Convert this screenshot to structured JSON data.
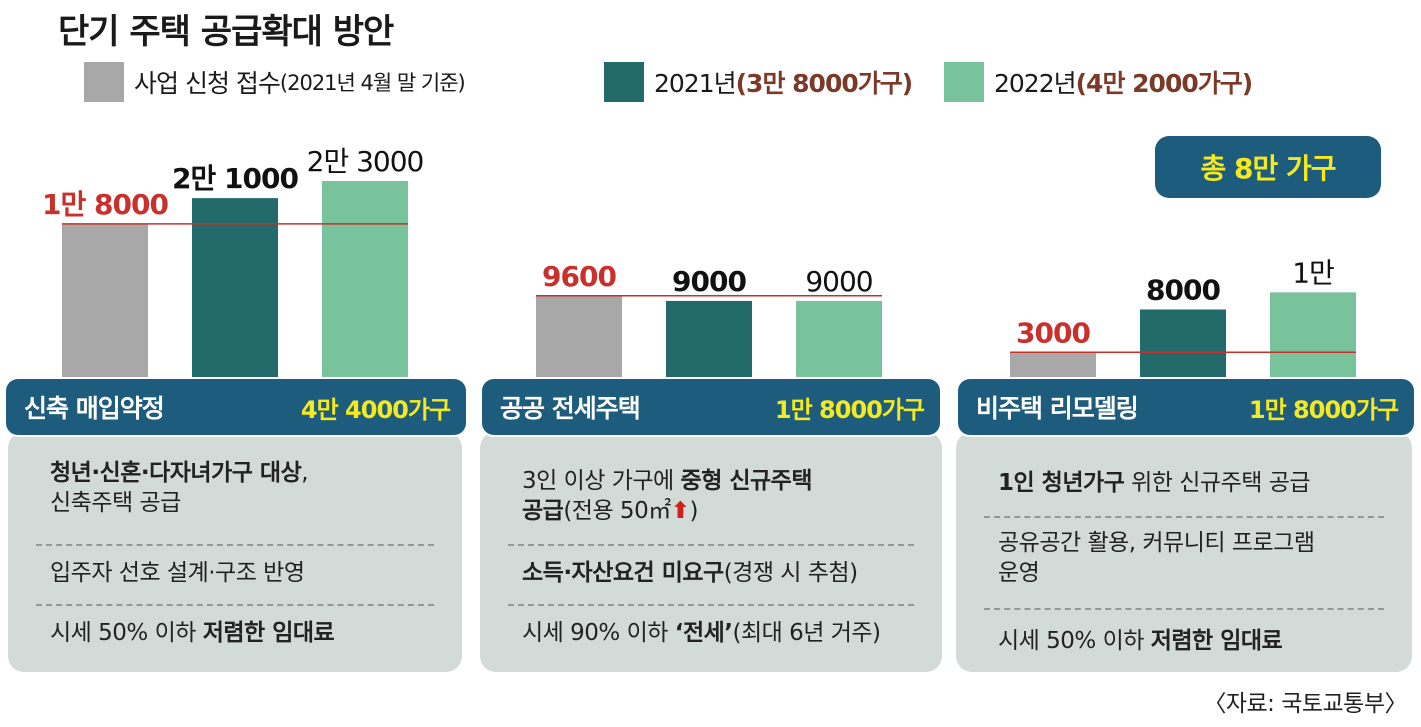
{
  "title": "단기 주택 공급확대 방안",
  "legend": {
    "applications": {
      "label": "사업 신청 접수",
      "note": "(2021년 4월 말 기준)",
      "color": "#a8a8a8"
    },
    "y2021": {
      "label": "2021년",
      "total": "(3만 8000가구)",
      "color": "#236a6a"
    },
    "y2022": {
      "label": "2022년",
      "total": "(4만 2000가구)",
      "color": "#78c29c"
    }
  },
  "grand_total": "총 8만 가구",
  "chart_data": {
    "type": "bar",
    "series": [
      {
        "name": "사업 신청 접수(2021년 4월 말 기준)",
        "color": "#a8a8a8"
      },
      {
        "name": "2021년",
        "color": "#236a6a"
      },
      {
        "name": "2022년",
        "color": "#78c29c"
      }
    ],
    "groups": [
      {
        "category": "신축 매입약정",
        "values": [
          18000,
          21000,
          23000
        ],
        "labels": [
          "1만 8000",
          "2만 1000",
          "2만 3000"
        ]
      },
      {
        "category": "공공 전세주택",
        "values": [
          9600,
          9000,
          9000
        ],
        "labels": [
          "9600",
          "9000",
          "9000"
        ]
      },
      {
        "category": "비주택 리모델링",
        "values": [
          3000,
          8000,
          10000
        ],
        "labels": [
          "3000",
          "8000",
          "1만"
        ]
      }
    ]
  },
  "panels": [
    {
      "name": "신축 매입약정",
      "total": "4만 4000가구",
      "items": [
        {
          "bold1": "청년·신혼·다자녀가구 대상",
          "text1": ",",
          "line2": "신축주택 공급"
        },
        {
          "text1": "입주자 선호 설계·구조 반영"
        },
        {
          "text1": "시세 50% 이하 ",
          "bold2": "저렴한 임대료"
        }
      ]
    },
    {
      "name": "공공 전세주택",
      "total": "1만 8000가구",
      "items": [
        {
          "text1": "3인 이상 가구에 ",
          "bold2": "중형 신규주택",
          "bold3": "공급",
          "text3": "(전용 50㎡",
          "arrow": "⬆",
          "text4": ")"
        },
        {
          "bold1": "소득·자산요건 미요구",
          "text2": "(경쟁 시 추첨)"
        },
        {
          "text1": "시세 90% 이하 ",
          "bold2": "‘전세’",
          "text2": "(최대 6년 거주)"
        }
      ]
    },
    {
      "name": "비주택 리모델링",
      "total": "1만 8000가구",
      "items": [
        {
          "bold1": "1인 청년가구",
          "text2": " 위한 신규주택 공급"
        },
        {
          "text1": "공유공간 활용, 커뮤니티 프로그램",
          "line2": "운영"
        },
        {
          "text1": "시세 50% 이하 ",
          "bold2": "저렴한 임대료"
        }
      ]
    }
  ],
  "source": "〈자료: 국토교통부〉"
}
